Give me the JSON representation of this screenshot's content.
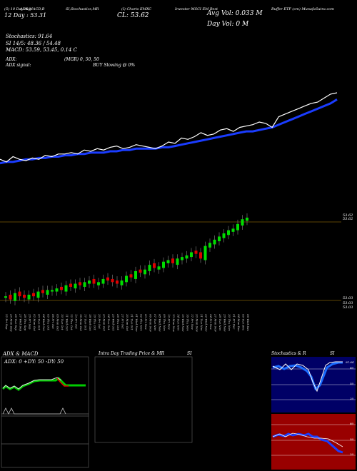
{
  "header": {
    "row1": [
      "(5) 10 Day Avg",
      "ADX,MACD,B",
      "SI,Stochastics,MR",
      "(I) Charts EMXC",
      "Investor MSCI EM Best",
      "Buffer ETF (cm) MunafaSutra.com"
    ],
    "left_value": "12 Day : 53.31",
    "ticker_label": "CL: 53.62",
    "avg_vol": "Avg Vol: 0.033 M",
    "day_vol": "Day Vol: 0  M"
  },
  "indicators": {
    "stochastics": "Stochastics: 91.64",
    "si": "SI 14/5: 48.36 / 54.48",
    "macd": "MACD: 53.59, 53.45, 0.14  C",
    "adx": "ADX:",
    "mgr": "(MGR) 0,  50,  50",
    "adx_signal": "ADX  signal:",
    "buy_signal": "BUY Slowing @ 0%"
  },
  "price_labels": {
    "top1": "53.62",
    "top2": "53.62",
    "bottom1": "53.03",
    "bottom2": "53.03",
    "bottom3": "53.03"
  },
  "dates": [
    "22 Fri Sep",
    "25 Mon Sep",
    "26 Tue Sep",
    "27 Wed Sep",
    "28 Thu Sep",
    "29 Fri Sep",
    "02 Mon Oct",
    "03 Tue Oct",
    "04 Wed Oct",
    "05 Thu Oct",
    "06 Fri Oct",
    "09 Mon Oct",
    "10 Tue Oct",
    "11 Wed Oct",
    "12 Thu Oct",
    "13 Fri Oct",
    "16 Mon Oct",
    "17 Tue Oct",
    "18 Wed Oct",
    "19 Thu Oct",
    "20 Fri Oct",
    "23 Mon Oct",
    "24 Tue Oct",
    "25 Wed Oct",
    "26 Thu Oct",
    "27 Fri Oct",
    "30 Mon Oct",
    "31 Tue Oct",
    "01 Wed Nov",
    "02 Thu Nov",
    "03 Fri Nov",
    "06 Mon Nov",
    "07 Tue Nov",
    "08 Wed Nov",
    "09 Thu Nov",
    "10 Fri Nov",
    "13 Mon Nov",
    "14 Tue Nov",
    "15 Wed Nov",
    "16 Thu Nov",
    "17 Fri Nov",
    "20 Mon Nov",
    "21 Tue Nov",
    "22 Wed Nov",
    "24 Fri Nov",
    "27 Mon Nov",
    "28 Tue Nov",
    "29 Wed Nov",
    "30 Thu Nov",
    "01 Fri Dec",
    "04 Mon Dec",
    "05 Tue Dec",
    "06 Wed Dec"
  ],
  "panels": {
    "adx_title": "ADX  & MACD",
    "adx_label": "ADX: 0  +DY: 50  -DY: 50",
    "intraday_title": "Intra  Day Trading Price  & MR",
    "intraday_si": "SI",
    "stoch_title": "Stochastics & R",
    "stoch_si": "SI",
    "stoch_value": "91.64",
    "stoch_levels": [
      "80",
      "50",
      "20"
    ],
    "si_levels": [
      "80",
      "50",
      "20"
    ],
    "colors": {
      "blue": "#1a3cff",
      "green": "#00cc00",
      "red": "#e00000",
      "navy": "#000066",
      "darkred": "#990000"
    }
  },
  "chart_data": {
    "type": "line",
    "series": [
      {
        "name": "",
        "values": [
          53.12,
          53.1,
          53.14,
          53.12,
          53.11,
          53.13,
          53.12,
          53.15,
          53.14,
          53.16,
          53.16,
          53.17,
          53.16,
          53.19,
          53.18,
          53.2,
          53.19,
          53.21,
          53.22,
          53.2,
          53.21,
          53.23,
          53.22,
          53.21,
          53.2,
          53.22,
          53.25,
          53.24,
          53.28,
          53.27,
          53.29,
          53.32,
          53.3,
          53.31,
          53.34,
          53.35,
          53.33,
          53.36,
          53.37,
          53.38,
          53.4,
          53.39,
          53.36,
          53.44,
          53.46,
          53.48,
          53.5,
          53.52,
          53.54,
          53.55,
          53.58,
          53.61,
          53.62
        ]
      },
      {
        "name": "",
        "values": [
          53.09,
          53.1,
          53.1,
          53.11,
          53.12,
          53.12,
          53.13,
          53.13,
          53.14,
          53.14,
          53.15,
          53.15,
          53.16,
          53.16,
          53.17,
          53.17,
          53.17,
          53.18,
          53.18,
          53.19,
          53.19,
          53.2,
          53.2,
          53.2,
          53.2,
          53.21,
          53.21,
          53.22,
          53.23,
          53.24,
          53.25,
          53.26,
          53.27,
          53.28,
          53.29,
          53.3,
          53.31,
          53.32,
          53.33,
          53.33,
          53.34,
          53.35,
          53.36,
          53.38,
          53.4,
          53.42,
          53.44,
          53.46,
          53.48,
          53.5,
          53.52,
          53.54,
          53.57
        ]
      }
    ],
    "ylim": [
      53.03,
      53.62
    ]
  }
}
